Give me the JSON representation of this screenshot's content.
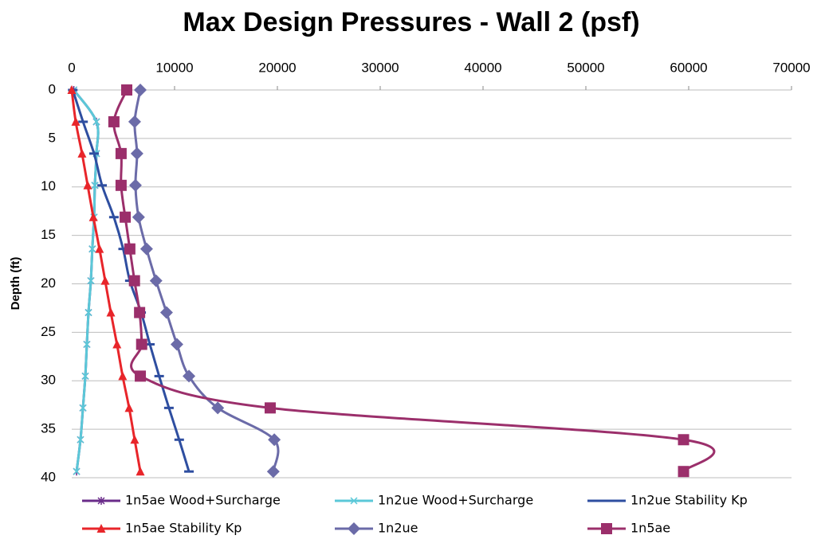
{
  "chart_data": {
    "type": "line",
    "title": "Max Design Pressures - Wall 2 (psf)",
    "y_label": "Depth (ft)",
    "y": [
      0,
      3.28,
      6.56,
      9.84,
      13.12,
      16.4,
      19.68,
      22.96,
      26.24,
      29.52,
      32.8,
      36.08,
      39.36
    ],
    "xlim": [
      0,
      70000
    ],
    "xticks": [
      0,
      10000,
      20000,
      30000,
      40000,
      50000,
      60000,
      70000
    ],
    "ylim": [
      0,
      40
    ],
    "yticks": [
      0,
      5,
      10,
      15,
      20,
      25,
      30,
      35,
      40
    ],
    "y_inverted": true,
    "x_axis_top": true,
    "grid": true,
    "legend": "bottom",
    "series": [
      {
        "name": "1n5ae Wood+Surcharge",
        "color": "#6a2c8a",
        "marker": "star",
        "values": [
          200,
          2400,
          2400,
          2250,
          2170,
          2000,
          1860,
          1630,
          1470,
          1320,
          1090,
          850,
          470
        ]
      },
      {
        "name": "1n2ue Wood+Surcharge",
        "color": "#5bc8d8",
        "marker": "x",
        "values": [
          200,
          2400,
          2400,
          2250,
          2170,
          2000,
          1860,
          1630,
          1470,
          1320,
          1090,
          850,
          470
        ]
      },
      {
        "name": "1n2ue Stability Kp",
        "color": "#2e4ea0",
        "marker": "dash",
        "values": [
          100,
          1100,
          2170,
          2950,
          4100,
          5000,
          5650,
          6750,
          7600,
          8500,
          9450,
          10450,
          11400
        ]
      },
      {
        "name": "1n5ae Stability Kp",
        "color": "#e8252a",
        "marker": "triangle",
        "values": [
          0,
          390,
          1000,
          1550,
          2100,
          2700,
          3250,
          3800,
          4400,
          4950,
          5580,
          6120,
          6670
        ]
      },
      {
        "name": "1n2ue",
        "color": "#6b6ba8",
        "marker": "diamond",
        "values": [
          6670,
          6120,
          6350,
          6200,
          6500,
          7280,
          8200,
          9220,
          10230,
          11400,
          14200,
          19700,
          19600
        ]
      },
      {
        "name": "1n5ae",
        "color": "#9b2f6b",
        "marker": "square",
        "values": [
          5350,
          4100,
          4800,
          4800,
          5200,
          5650,
          6100,
          6600,
          6800,
          6670,
          19300,
          59500,
          59500
        ]
      }
    ]
  }
}
